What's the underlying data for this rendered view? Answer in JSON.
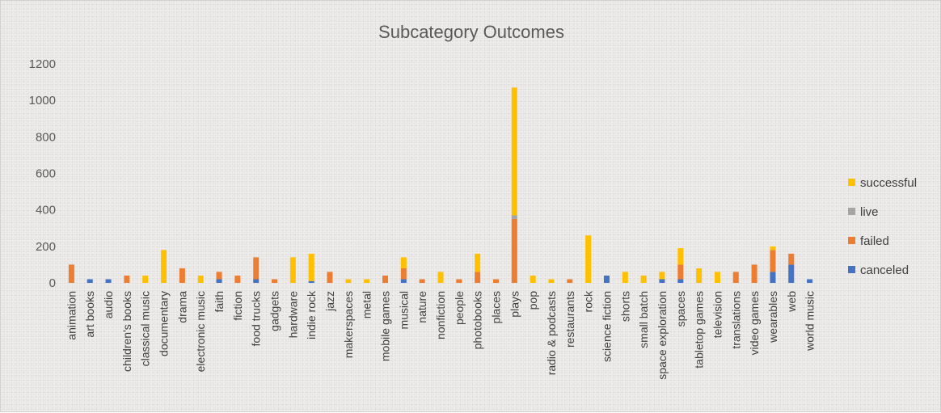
{
  "chart_data": {
    "type": "bar",
    "stacked": true,
    "title": "Subcategory Outcomes",
    "xlabel": "",
    "ylabel": "",
    "ylim": [
      0,
      1200
    ],
    "yticks": [
      0,
      200,
      400,
      600,
      800,
      1000,
      1200
    ],
    "grid": false,
    "legend_position": "right",
    "categories": [
      "animation",
      "art books",
      "audio",
      "children's books",
      "classical music",
      "documentary",
      "drama",
      "electronic music",
      "faith",
      "fiction",
      "food trucks",
      "gadgets",
      "hardware",
      "indie rock",
      "jazz",
      "makerspaces",
      "metal",
      "mobile games",
      "musical",
      "nature",
      "nonfiction",
      "people",
      "photobooks",
      "places",
      "plays",
      "pop",
      "radio & podcasts",
      "restaurants",
      "rock",
      "science fiction",
      "shorts",
      "small batch",
      "space exploration",
      "spaces",
      "tabletop games",
      "television",
      "translations",
      "video games",
      "wearables",
      "web",
      "world music"
    ],
    "series": [
      {
        "name": "canceled",
        "color": "#4472c4",
        "values": [
          0,
          20,
          20,
          0,
          0,
          0,
          0,
          0,
          20,
          0,
          20,
          0,
          0,
          10,
          0,
          0,
          0,
          0,
          20,
          0,
          0,
          0,
          0,
          0,
          0,
          0,
          0,
          0,
          0,
          40,
          0,
          0,
          20,
          20,
          0,
          0,
          0,
          0,
          60,
          100,
          20
        ]
      },
      {
        "name": "failed",
        "color": "#ed7d31",
        "values": [
          100,
          0,
          0,
          40,
          0,
          0,
          80,
          0,
          40,
          40,
          120,
          20,
          0,
          0,
          60,
          0,
          0,
          40,
          60,
          20,
          0,
          20,
          60,
          20,
          350,
          0,
          0,
          20,
          0,
          0,
          0,
          0,
          0,
          80,
          0,
          0,
          60,
          100,
          120,
          60,
          0
        ]
      },
      {
        "name": "live",
        "color": "#a5a5a5",
        "values": [
          0,
          0,
          0,
          0,
          0,
          0,
          0,
          0,
          0,
          0,
          0,
          0,
          0,
          0,
          0,
          0,
          0,
          0,
          0,
          0,
          0,
          0,
          0,
          0,
          20,
          0,
          0,
          0,
          0,
          0,
          0,
          0,
          0,
          0,
          0,
          0,
          0,
          0,
          0,
          0,
          0
        ]
      },
      {
        "name": "successful",
        "color": "#ffc000",
        "values": [
          0,
          0,
          0,
          0,
          40,
          180,
          0,
          40,
          0,
          0,
          0,
          0,
          140,
          150,
          0,
          20,
          20,
          0,
          60,
          0,
          60,
          0,
          100,
          0,
          700,
          40,
          20,
          0,
          260,
          0,
          60,
          40,
          40,
          90,
          80,
          60,
          0,
          0,
          20,
          0,
          0
        ]
      }
    ]
  }
}
